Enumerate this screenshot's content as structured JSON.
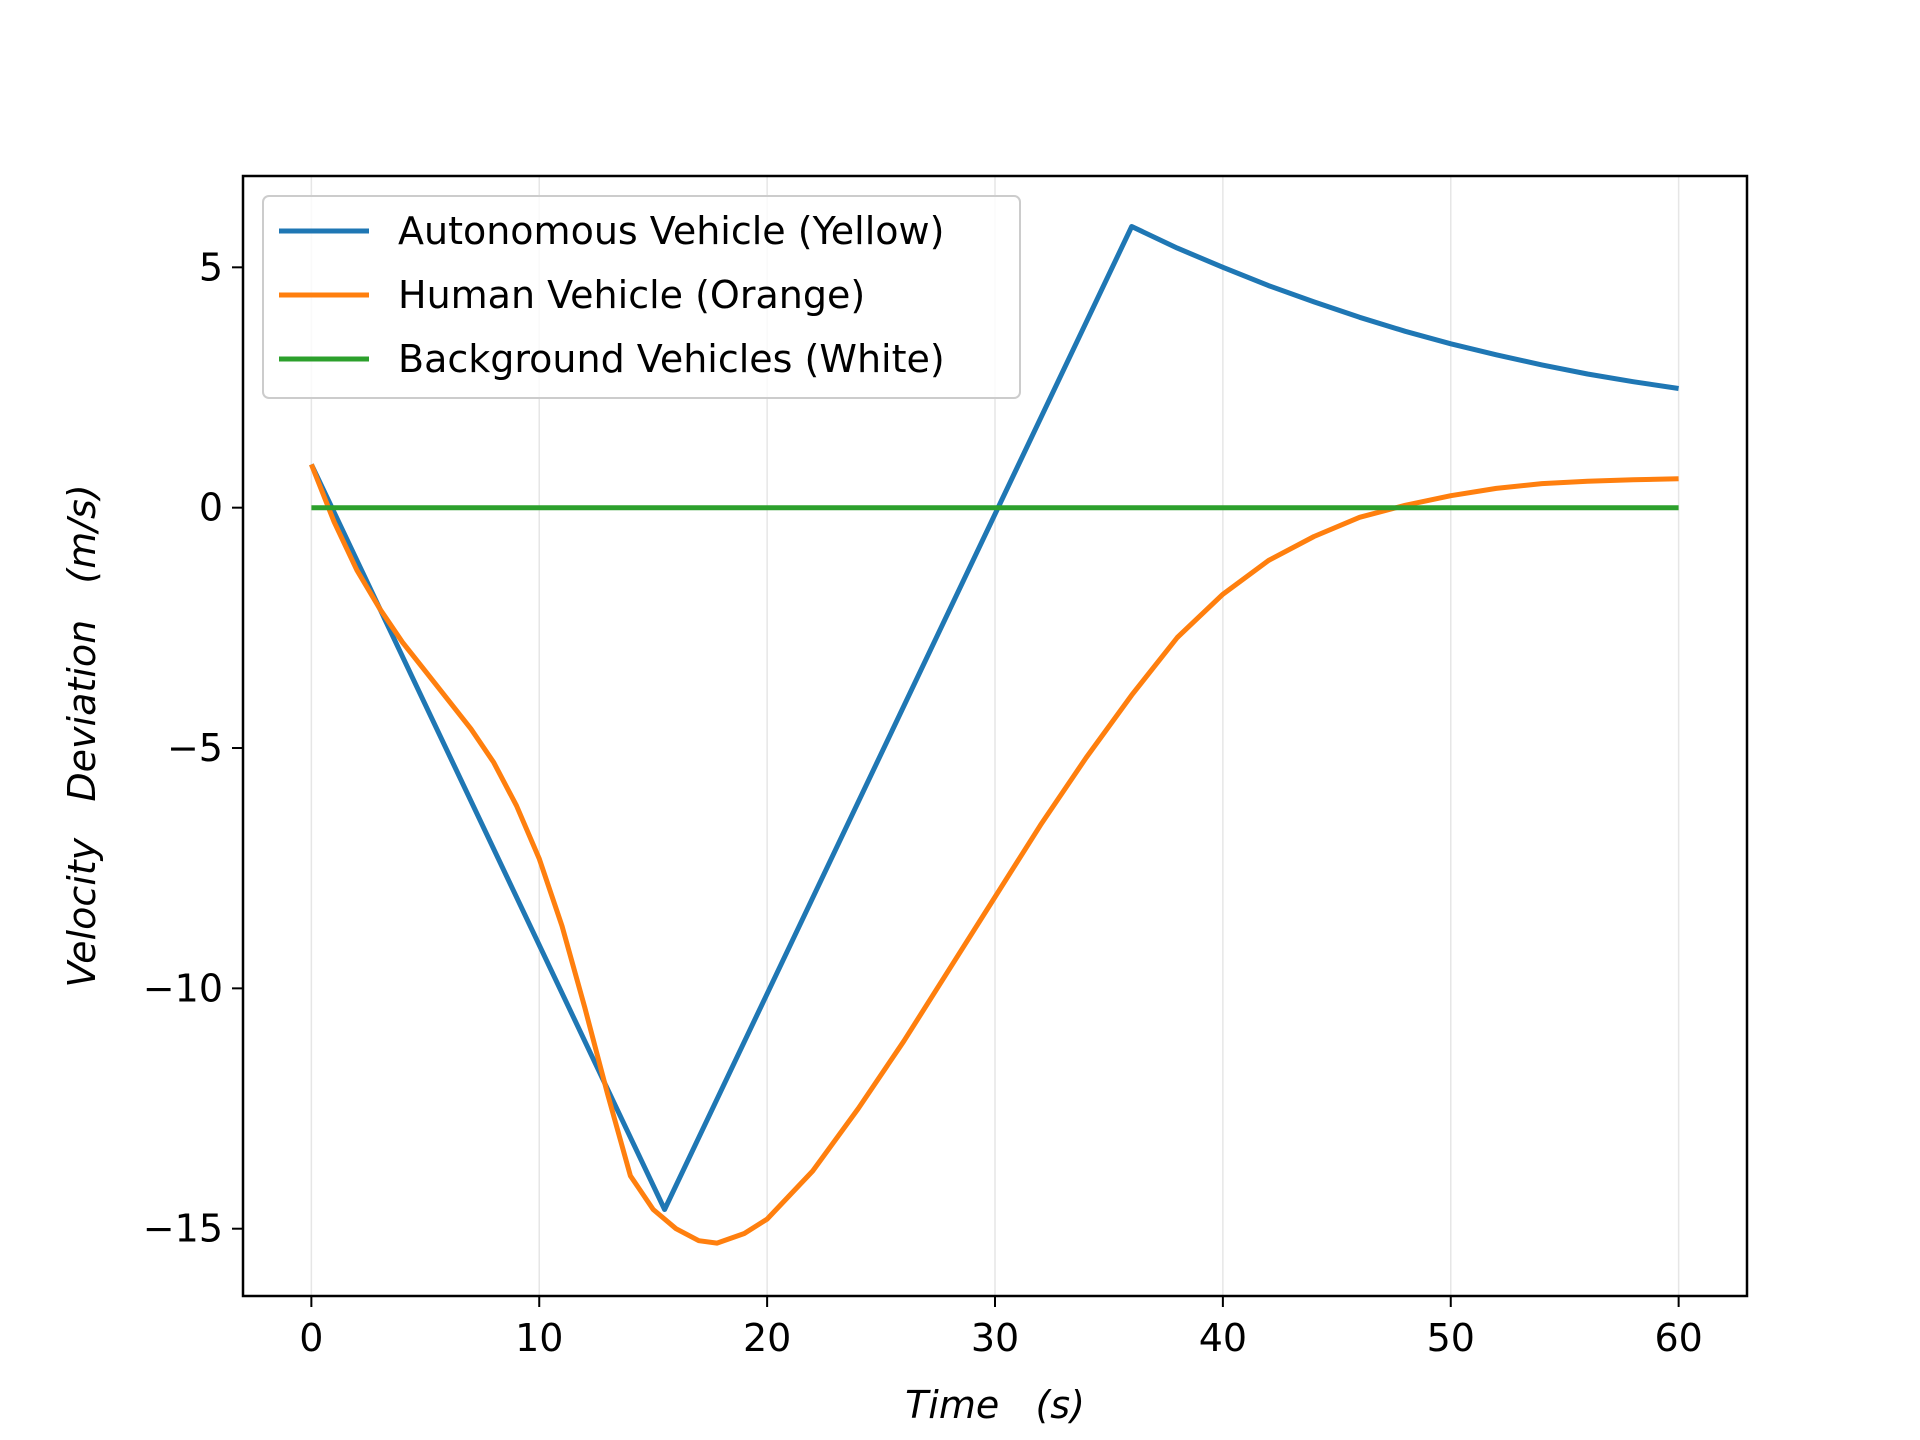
{
  "chart_data": {
    "type": "line",
    "title": "",
    "xlabel": "Time   (s)",
    "ylabel": "Velocity   Deviation   (m/s)",
    "xlim": [
      -3,
      63
    ],
    "ylim": [
      -16.4,
      6.9
    ],
    "xticks": [
      0,
      10,
      20,
      30,
      40,
      50,
      60
    ],
    "xtick_labels": [
      "0",
      "10",
      "20",
      "30",
      "40",
      "50",
      "60"
    ],
    "yticks": [
      5,
      0,
      -5,
      -10,
      -15
    ],
    "ytick_labels": [
      "5",
      "0",
      "−5",
      "−10",
      "−15"
    ],
    "grid": "vertical",
    "legend_position": "upper-left",
    "series": [
      {
        "name": "Autonomous Vehicle (Yellow)",
        "color": "#1f77b4",
        "x": [
          0,
          15.5,
          36,
          38,
          40,
          42,
          44,
          46,
          48,
          50,
          52,
          54,
          56,
          58,
          60
        ],
        "y": [
          0.9,
          -14.6,
          5.85,
          5.4,
          5.0,
          4.62,
          4.28,
          3.96,
          3.67,
          3.41,
          3.18,
          2.97,
          2.78,
          2.62,
          2.48
        ]
      },
      {
        "name": "Human Vehicle (Orange)",
        "color": "#ff7f0e",
        "x": [
          0,
          1,
          2,
          3,
          4,
          5,
          6,
          7,
          8,
          9,
          10,
          11,
          12,
          13,
          14,
          15,
          16,
          17,
          17.8,
          19,
          20,
          22,
          24,
          26,
          28,
          30,
          32,
          34,
          36,
          38,
          40,
          42,
          44,
          46,
          48,
          50,
          52,
          54,
          56,
          58,
          60
        ],
        "y": [
          0.9,
          -0.3,
          -1.3,
          -2.1,
          -2.8,
          -3.4,
          -4.0,
          -4.6,
          -5.3,
          -6.2,
          -7.3,
          -8.7,
          -10.4,
          -12.2,
          -13.9,
          -14.6,
          -15.0,
          -15.25,
          -15.3,
          -15.1,
          -14.8,
          -13.8,
          -12.5,
          -11.1,
          -9.6,
          -8.1,
          -6.6,
          -5.2,
          -3.9,
          -2.7,
          -1.8,
          -1.1,
          -0.6,
          -0.2,
          0.05,
          0.25,
          0.4,
          0.5,
          0.55,
          0.58,
          0.6
        ]
      },
      {
        "name": "Background Vehicles (White)",
        "color": "#2ca02c",
        "x": [
          0,
          60
        ],
        "y": [
          0,
          0
        ]
      }
    ]
  }
}
